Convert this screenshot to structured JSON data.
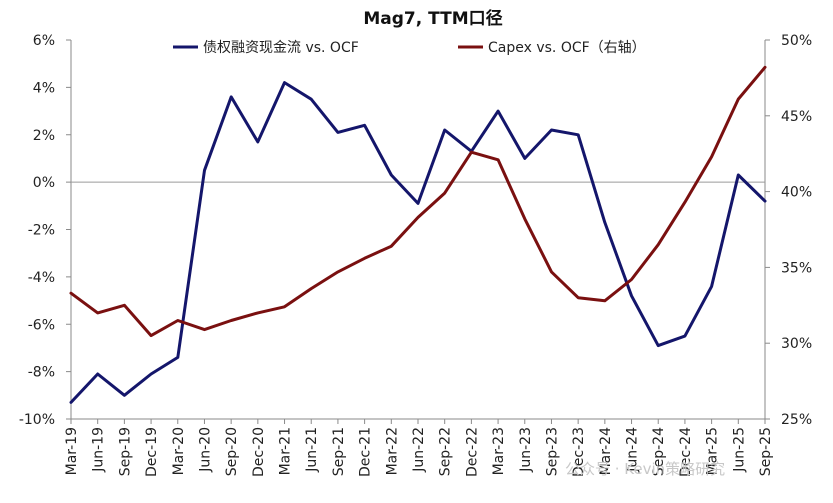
{
  "chart_data": {
    "type": "line",
    "title": "Mag7, TTM口径",
    "categories": [
      "Mar-19",
      "Jun-19",
      "Sep-19",
      "Dec-19",
      "Mar-20",
      "Jun-20",
      "Sep-20",
      "Dec-20",
      "Mar-21",
      "Jun-21",
      "Sep-21",
      "Dec-21",
      "Mar-22",
      "Jun-22",
      "Sep-22",
      "Dec-22",
      "Mar-23",
      "Jun-23",
      "Sep-23",
      "Dec-23",
      "Mar-24",
      "Jun-24",
      "Sep-24",
      "Dec-24",
      "Mar-25",
      "Jun-25",
      "Sep-25"
    ],
    "series": [
      {
        "name": "债权融资现金流 vs. OCF",
        "axis": "left",
        "color": "#14166b",
        "values": [
          -9.3,
          -8.1,
          -9.0,
          -8.1,
          -7.4,
          0.5,
          3.6,
          1.7,
          4.2,
          3.5,
          2.1,
          2.4,
          0.3,
          -0.9,
          2.2,
          1.3,
          3.0,
          1.0,
          2.2,
          2.0,
          -1.7,
          -4.8,
          -6.9,
          -6.5,
          -4.4,
          0.3,
          -0.8
        ]
      },
      {
        "name": "Capex vs. OCF（右轴）",
        "axis": "right",
        "color": "#7a1010",
        "values": [
          33.3,
          32.0,
          32.5,
          30.5,
          31.5,
          30.9,
          31.5,
          32.0,
          32.4,
          33.6,
          34.7,
          35.6,
          36.4,
          38.3,
          39.9,
          42.6,
          42.1,
          38.2,
          34.7,
          33.0,
          32.8,
          34.2,
          36.5,
          39.3,
          42.3,
          46.1,
          48.2
        ]
      }
    ],
    "yleft": {
      "ylim": [
        -10,
        6
      ],
      "ticks": [
        "-10%",
        "-8%",
        "-6%",
        "-4%",
        "-2%",
        "0%",
        "2%",
        "4%",
        "6%"
      ],
      "tick_values": [
        -10,
        -8,
        -6,
        -4,
        -2,
        0,
        2,
        4,
        6
      ]
    },
    "yright": {
      "ylim": [
        25,
        50
      ],
      "ticks": [
        "25%",
        "30%",
        "35%",
        "40%",
        "45%",
        "50%"
      ],
      "tick_values": [
        25,
        30,
        35,
        40,
        45,
        50
      ]
    },
    "legend": "top",
    "grid": false,
    "watermark": "公众号 · Kevin策略研究"
  }
}
